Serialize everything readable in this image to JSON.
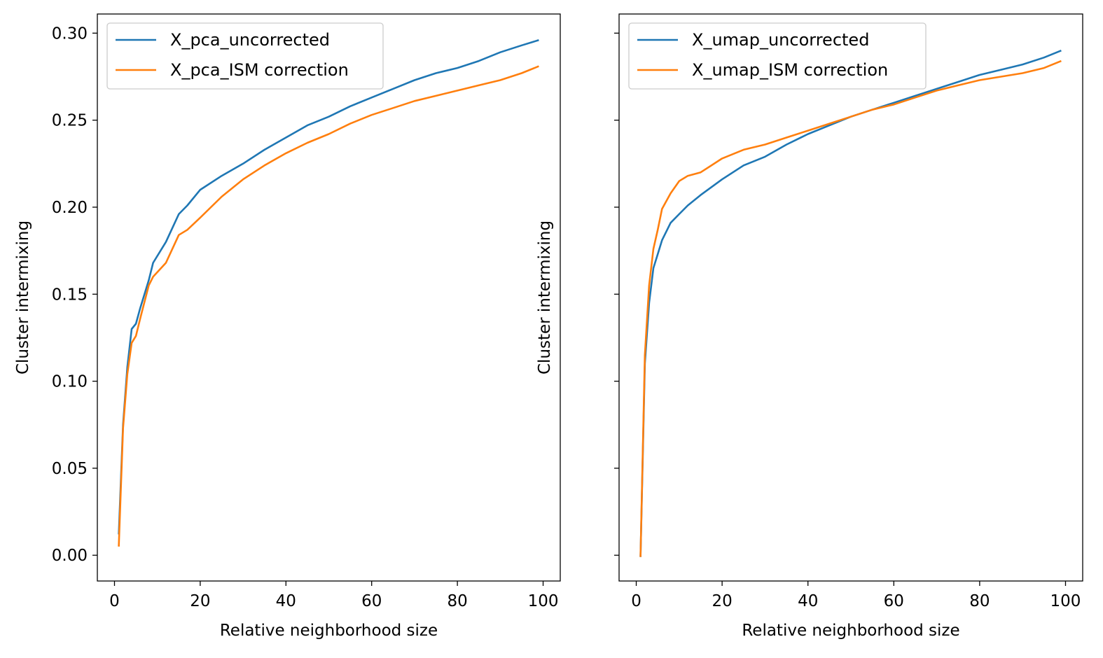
{
  "colors": {
    "series_blue": "#1f77b4",
    "series_orange": "#ff7f0e",
    "axes": "#000000",
    "legend_border": "#cccccc"
  },
  "chart_data": [
    {
      "type": "line",
      "xlabel": "Relative neighborhood size",
      "ylabel": "Cluster intermixing",
      "xlim": [
        -4,
        104
      ],
      "ylim": [
        -0.0148,
        0.311
      ],
      "xticks": [
        0,
        20,
        40,
        60,
        80,
        100
      ],
      "xtick_labels": [
        "0",
        "20",
        "40",
        "60",
        "80",
        "100"
      ],
      "yticks": [
        0.0,
        0.05,
        0.1,
        0.15,
        0.2,
        0.25,
        0.3
      ],
      "ytick_labels": [
        "0.00",
        "0.05",
        "0.10",
        "0.15",
        "0.20",
        "0.25",
        "0.30"
      ],
      "grid": false,
      "legend_position": "upper-left",
      "x": [
        1,
        2,
        3,
        4,
        5,
        6,
        8,
        9,
        12,
        15,
        17,
        20,
        25,
        30,
        35,
        40,
        45,
        50,
        55,
        60,
        65,
        70,
        75,
        80,
        85,
        90,
        95,
        99
      ],
      "series": [
        {
          "name": "X_pca_uncorrected",
          "values": [
            0.012,
            0.075,
            0.108,
            0.13,
            0.133,
            0.142,
            0.158,
            0.168,
            0.18,
            0.196,
            0.201,
            0.21,
            0.218,
            0.225,
            0.233,
            0.24,
            0.247,
            0.252,
            0.258,
            0.263,
            0.268,
            0.273,
            0.277,
            0.28,
            0.284,
            0.289,
            0.293,
            0.296
          ]
        },
        {
          "name": "X_pca_ISM correction",
          "values": [
            0.005,
            0.073,
            0.104,
            0.122,
            0.126,
            0.136,
            0.155,
            0.16,
            0.168,
            0.184,
            0.187,
            0.194,
            0.206,
            0.216,
            0.224,
            0.231,
            0.237,
            0.242,
            0.248,
            0.253,
            0.257,
            0.261,
            0.264,
            0.267,
            0.27,
            0.273,
            0.277,
            0.281
          ]
        }
      ]
    },
    {
      "type": "line",
      "xlabel": "Relative neighborhood size",
      "ylabel": "Cluster intermixing",
      "xlim": [
        -4,
        104
      ],
      "ylim": [
        -0.0148,
        0.311
      ],
      "xticks": [
        0,
        20,
        40,
        60,
        80,
        100
      ],
      "xtick_labels": [
        "0",
        "20",
        "40",
        "60",
        "80",
        "100"
      ],
      "yticks": [
        0.0,
        0.05,
        0.1,
        0.15,
        0.2,
        0.25,
        0.3
      ],
      "ytick_labels": [],
      "grid": false,
      "legend_position": "upper-left",
      "x": [
        1,
        2,
        3,
        4,
        5,
        6,
        8,
        10,
        12,
        15,
        20,
        25,
        30,
        35,
        40,
        45,
        50,
        55,
        60,
        65,
        70,
        75,
        80,
        85,
        90,
        95,
        99
      ],
      "series": [
        {
          "name": "X_umap_uncorrected",
          "values": [
            -0.001,
            0.11,
            0.145,
            0.165,
            0.173,
            0.181,
            0.191,
            0.196,
            0.201,
            0.207,
            0.216,
            0.224,
            0.229,
            0.236,
            0.242,
            0.247,
            0.252,
            0.256,
            0.26,
            0.264,
            0.268,
            0.272,
            0.276,
            0.279,
            0.282,
            0.286,
            0.29
          ]
        },
        {
          "name": "X_umap_ISM correction",
          "values": [
            -0.001,
            0.115,
            0.155,
            0.176,
            0.187,
            0.199,
            0.208,
            0.215,
            0.218,
            0.22,
            0.228,
            0.233,
            0.236,
            0.24,
            0.244,
            0.248,
            0.252,
            0.256,
            0.259,
            0.263,
            0.267,
            0.27,
            0.273,
            0.275,
            0.277,
            0.28,
            0.284
          ]
        }
      ]
    }
  ]
}
